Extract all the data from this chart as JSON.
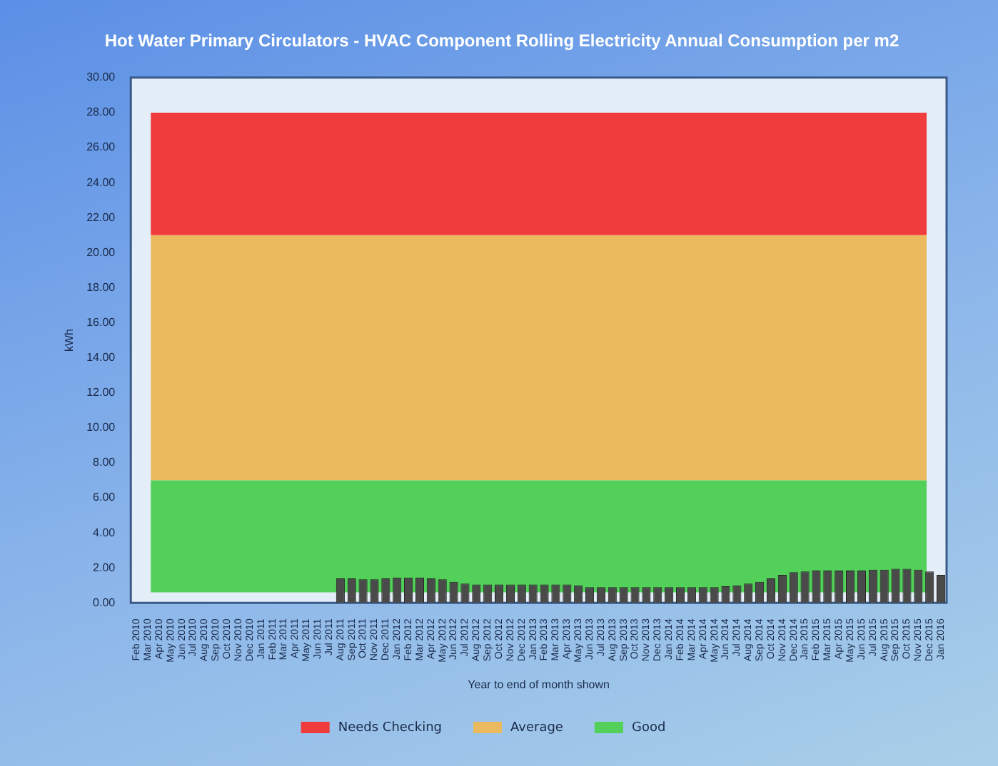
{
  "chart_data": {
    "type": "bar",
    "title": "Hot Water Primary Circulators - HVAC Component Rolling Electricity Annual Consumption per m2",
    "xlabel": "Year to end of month shown",
    "ylabel": "kWh",
    "categories": [
      "Feb 2010",
      "Mar 2010",
      "Apr 2010",
      "May 2010",
      "Jun 2010",
      "Jul 2010",
      "Aug 2010",
      "Sep 2010",
      "Oct 2010",
      "Nov 2010",
      "Dec 2010",
      "Jan 2011",
      "Feb 2011",
      "Mar 2011",
      "Apr 2011",
      "May 2011",
      "Jun 2011",
      "Jul 2011",
      "Aug 2011",
      "Sep 2011",
      "Oct 2011",
      "Nov 2011",
      "Dec 2011",
      "Jan 2012",
      "Feb 2012",
      "Mar 2012",
      "Apr 2012",
      "May 2012",
      "Jun 2012",
      "Jul 2012",
      "Aug 2012",
      "Sep 2012",
      "Oct 2012",
      "Nov 2012",
      "Dec 2012",
      "Jan 2013",
      "Feb 2013",
      "Mar 2013",
      "Apr 2013",
      "May 2013",
      "Jun 2013",
      "Jul 2013",
      "Aug 2013",
      "Sep 2013",
      "Oct 2013",
      "Nov 2013",
      "Dec 2013",
      "Jan 2014",
      "Feb 2014",
      "Mar 2014",
      "Apr 2014",
      "May 2014",
      "Jun 2014",
      "Jul 2014",
      "Aug 2014",
      "Sep 2014",
      "Oct 2014",
      "Nov 2014",
      "Dec 2014",
      "Jan 2015",
      "Feb 2015",
      "Mar 2015",
      "Apr 2015",
      "May 2015",
      "Jun 2015",
      "Jul 2015",
      "Aug 2015",
      "Sep 2015",
      "Oct 2015",
      "Nov 2015",
      "Dec 2015",
      "Jan 2016"
    ],
    "series": [
      {
        "color": "#4a4a4a",
        "values": [
          null,
          null,
          null,
          null,
          null,
          null,
          null,
          null,
          null,
          null,
          null,
          null,
          null,
          null,
          null,
          null,
          null,
          null,
          1.4,
          1.4,
          1.35,
          1.35,
          1.4,
          1.45,
          1.45,
          1.45,
          1.4,
          1.35,
          1.2,
          1.1,
          1.05,
          1.05,
          1.05,
          1.05,
          1.05,
          1.05,
          1.05,
          1.05,
          1.05,
          1.0,
          0.9,
          0.9,
          0.9,
          0.9,
          0.9,
          0.9,
          0.9,
          0.9,
          0.9,
          0.9,
          0.9,
          0.9,
          0.95,
          1.0,
          1.1,
          1.2,
          1.4,
          1.6,
          1.75,
          1.8,
          1.85,
          1.85,
          1.85,
          1.85,
          1.85,
          1.9,
          1.9,
          1.95,
          1.95,
          1.9,
          1.8,
          1.6
        ]
      }
    ],
    "ylim": [
      0,
      30
    ],
    "yticks": [
      {
        "value": 0,
        "label": "0.00"
      },
      {
        "value": 2,
        "label": "2.00"
      },
      {
        "value": 4,
        "label": "4.00"
      },
      {
        "value": 6,
        "label": "6.00"
      },
      {
        "value": 8,
        "label": "8.00"
      },
      {
        "value": 10,
        "label": "10.00"
      },
      {
        "value": 12,
        "label": "12.00"
      },
      {
        "value": 14,
        "label": "14.00"
      },
      {
        "value": 16,
        "label": "16.00"
      },
      {
        "value": 18,
        "label": "18.00"
      },
      {
        "value": 20,
        "label": "20.00"
      },
      {
        "value": 22,
        "label": "22.00"
      },
      {
        "value": 24,
        "label": "24.00"
      },
      {
        "value": 26,
        "label": "26.00"
      },
      {
        "value": 28,
        "label": "28.00"
      },
      {
        "value": 30,
        "label": "30.00"
      }
    ],
    "bands": [
      {
        "axis": "y",
        "from": 21,
        "to": 28,
        "label": "Needs Checking",
        "color": "#f03c3c"
      },
      {
        "axis": "y",
        "from": 7,
        "to": 21,
        "label": "Average",
        "color": "#ebba5e"
      },
      {
        "axis": "y",
        "from": 0.6,
        "to": 7,
        "label": "Good",
        "color": "#52d05a"
      }
    ],
    "grid": false,
    "legend": "bottom"
  }
}
